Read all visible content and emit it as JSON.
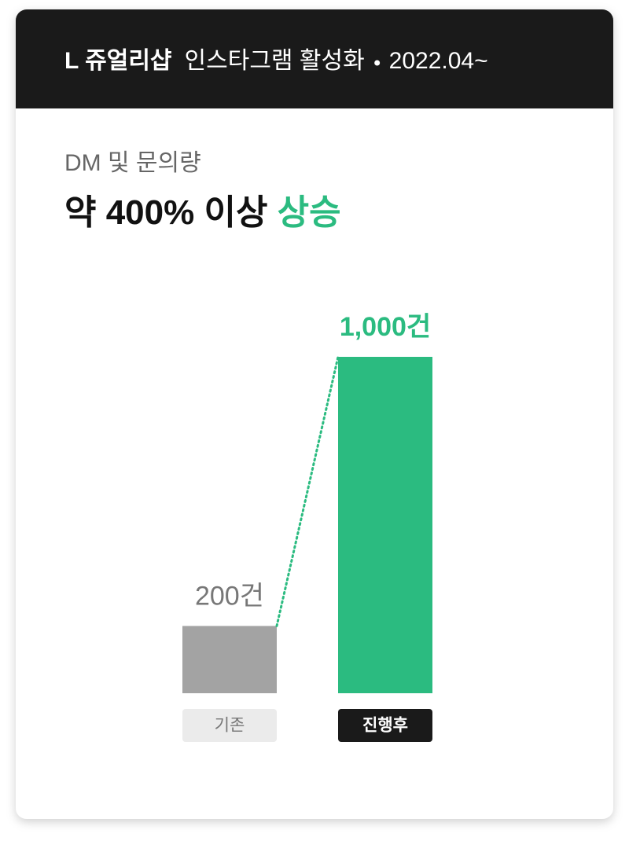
{
  "header": {
    "brand": "L 쥬얼리샵",
    "project": "인스타그램 활성화",
    "period": "2022.04~"
  },
  "chart_data": {
    "type": "bar",
    "subtitle": "DM 및 문의량",
    "title": "약 400% 이상",
    "title_highlight": "상승",
    "categories": [
      "기존",
      "진행후"
    ],
    "values": [
      200,
      1000
    ],
    "value_labels": [
      "200건",
      "1,000건"
    ],
    "colors": [
      "#a3a3a3",
      "#2bbb80"
    ]
  }
}
